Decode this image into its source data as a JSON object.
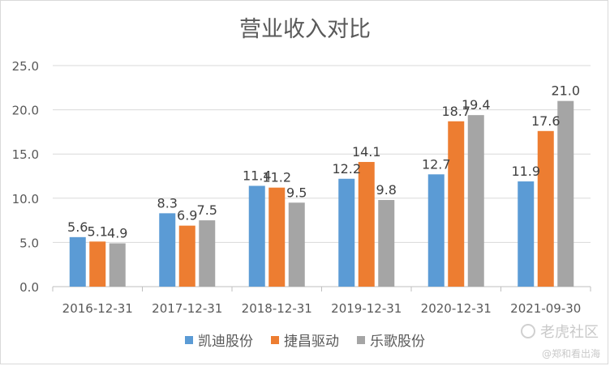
{
  "chart_data": {
    "type": "bar",
    "title": "营业收入对比",
    "categories": [
      "2016-12-31",
      "2017-12-31",
      "2018-12-31",
      "2019-12-31",
      "2020-12-31",
      "2021-09-30"
    ],
    "series": [
      {
        "name": "凯迪股份",
        "color": "#5b9bd5",
        "values": [
          5.6,
          8.3,
          11.4,
          12.2,
          12.7,
          11.9
        ]
      },
      {
        "name": "捷昌驱动",
        "color": "#ed7d31",
        "values": [
          5.1,
          6.9,
          11.2,
          14.1,
          18.7,
          17.6
        ]
      },
      {
        "name": "乐歌股份",
        "color": "#a5a5a5",
        "values": [
          4.9,
          7.5,
          9.5,
          9.8,
          19.4,
          21.0
        ]
      }
    ],
    "yticks": [
      "0.0",
      "5.0",
      "10.0",
      "15.0",
      "20.0",
      "25.0"
    ],
    "ylim": [
      0,
      25
    ],
    "xlabel": "",
    "ylabel": "",
    "grid": true,
    "legend": "bottom"
  },
  "watermark": {
    "brand": "老虎社区",
    "source": "@郑和看出海"
  }
}
